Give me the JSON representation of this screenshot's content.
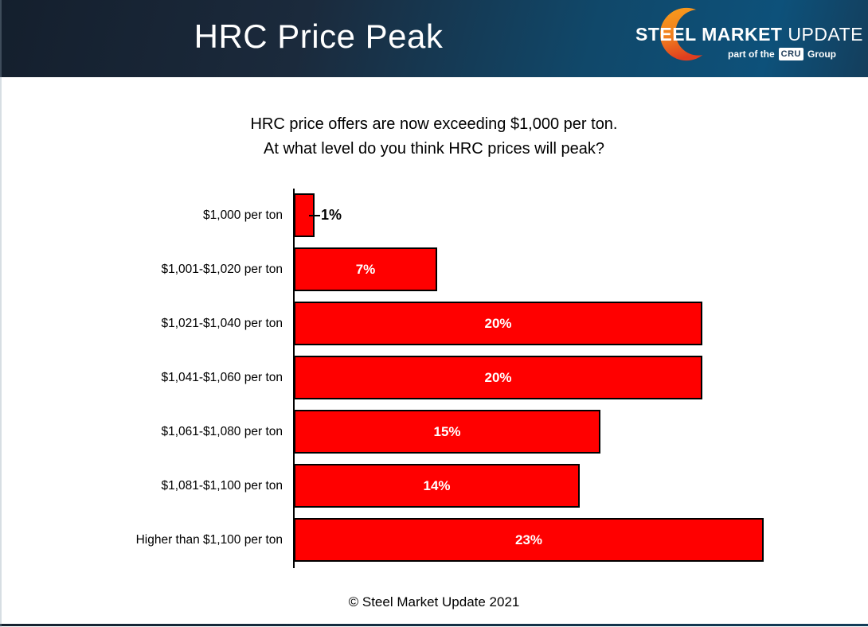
{
  "header": {
    "title": "HRC Price Peak",
    "background_left_color": "#141f2d",
    "background_right_color": "#0d517a",
    "logo": {
      "brand_bold": "STEEL MARKET",
      "brand_light": "UPDATE",
      "tagline_prefix": "part of the",
      "tagline_box": "CRU",
      "tagline_suffix": "Group",
      "crescent_top_color": "#f99d1c",
      "crescent_bottom_color": "#e03e1f"
    }
  },
  "subtitle": {
    "line1": "HRC price offers are now exceeding $1,000 per ton.",
    "line2": "At what level do you think HRC prices will peak?"
  },
  "chart_data": {
    "type": "bar",
    "orientation": "horizontal",
    "title": "",
    "xlabel": "",
    "ylabel": "",
    "categories": [
      "$1,000 per ton",
      "$1,001-$1,020 per ton",
      "$1,021-$1,040 per ton",
      "$1,041-$1,060 per ton",
      "$1,061-$1,080 per ton",
      "$1,081-$1,100 per ton",
      "Higher than $1,100 per ton"
    ],
    "values": [
      1,
      7,
      20,
      20,
      15,
      14,
      23
    ],
    "value_labels": [
      "1%",
      "7%",
      "20%",
      "20%",
      "15%",
      "14%",
      "23%"
    ],
    "xlim": [
      0,
      23
    ],
    "grid": false,
    "legend": false,
    "bar_color": "#ff0000",
    "bar_border_color": "#000000",
    "inside_label_color": "#ffffff",
    "outside_label_color": "#000000",
    "outside_label_threshold": 3
  },
  "footer": {
    "copyright": "© Steel Market Update 2021"
  }
}
